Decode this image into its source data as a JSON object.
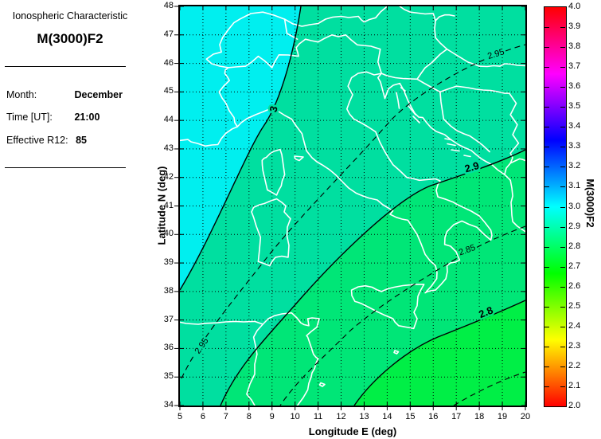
{
  "panel": {
    "subtitle": "Ionospheric Characteristic",
    "title": "M(3000)F2",
    "fields": [
      {
        "label": "Month:",
        "value": "December"
      },
      {
        "label": "Time [UT]:",
        "value": "21:00"
      },
      {
        "label": "Effective R12:",
        "value": "85"
      }
    ]
  },
  "chart_data": {
    "type": "heatmap",
    "subtype": "filled-contour-map",
    "title": "M(3000)F2",
    "xlabel": "Longitude E (deg)",
    "ylabel": "Latitude N (deg)",
    "xlim": [
      5,
      20
    ],
    "ylim": [
      34,
      48
    ],
    "grid": "dotted",
    "xticks": [
      "5",
      "6",
      "7",
      "8",
      "9",
      "10",
      "11",
      "12",
      "13",
      "14",
      "15",
      "16",
      "17",
      "18",
      "19",
      "20"
    ],
    "yticks": [
      "34",
      "35",
      "36",
      "37",
      "38",
      "39",
      "40",
      "41",
      "42",
      "43",
      "44",
      "45",
      "46",
      "47",
      "48"
    ],
    "map_overlay": "white coastlines and country borders of Italy / central Mediterranean",
    "fill_levels": [
      {
        "range": "above 3.0",
        "color": "#00EFEF"
      },
      {
        "range": "2.9 to 3.0",
        "color": "#00DFA0"
      },
      {
        "range": "2.8 to 2.9",
        "color": "#00E677"
      },
      {
        "range": "below 2.8",
        "color": "#00EF46"
      }
    ],
    "contours": [
      {
        "level": 3.0,
        "label": "3",
        "style": "solid"
      },
      {
        "level": 2.95,
        "label": "2.95",
        "style": "dashed"
      },
      {
        "level": 2.9,
        "label": "2.9",
        "style": "solid"
      },
      {
        "level": 2.85,
        "label": "2.85",
        "style": "dashed"
      },
      {
        "level": 2.8,
        "label": "2.8",
        "style": "solid"
      },
      {
        "level": 2.75,
        "label": "",
        "style": "dashed"
      }
    ],
    "colorbar": {
      "label": "M(3000)F2",
      "min": 2.0,
      "max": 4.0,
      "ticks": [
        "4.0",
        "3.9",
        "3.8",
        "3.7",
        "3.6",
        "3.5",
        "3.4",
        "3.3",
        "3.2",
        "3.1",
        "3.0",
        "2.9",
        "2.8",
        "2.7",
        "2.6",
        "2.5",
        "2.4",
        "2.3",
        "2.2",
        "2.1",
        "2.0"
      ]
    }
  }
}
